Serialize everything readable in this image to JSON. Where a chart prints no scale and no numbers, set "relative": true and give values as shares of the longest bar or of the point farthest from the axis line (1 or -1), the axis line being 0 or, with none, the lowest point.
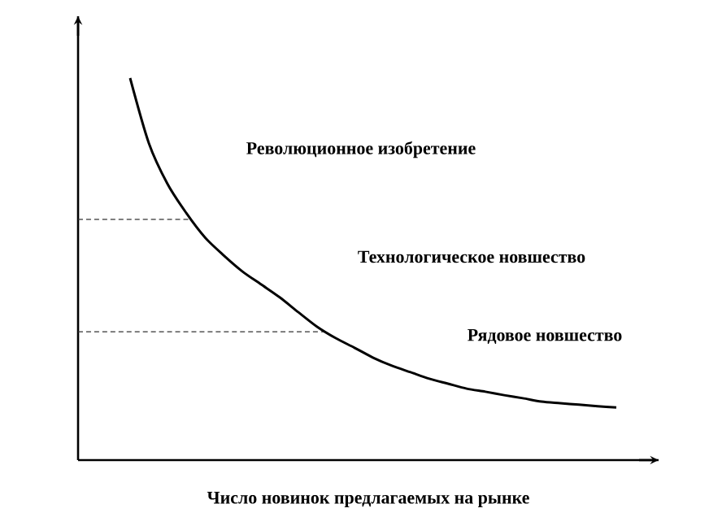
{
  "chart_data": {
    "type": "line",
    "relative": true,
    "xlabel": "Число новинок предлагаемых  на рынке",
    "categories": [
      null,
      null,
      null,
      null,
      null,
      null,
      null,
      null,
      null,
      null,
      null,
      null,
      null,
      null,
      null,
      null,
      null,
      null,
      null,
      null,
      null,
      null,
      null,
      null,
      null,
      null,
      null
    ],
    "values": [
      1.0,
      0.83,
      0.723,
      0.647,
      0.583,
      0.536,
      0.494,
      0.46,
      0.426,
      0.387,
      0.349,
      0.319,
      0.294,
      0.268,
      0.247,
      0.23,
      0.213,
      0.2,
      0.187,
      0.179,
      0.17,
      0.162,
      0.153,
      0.149,
      0.145,
      0.141,
      0.138
    ],
    "color": "#000000",
    "ref_lines": [
      {
        "axis": "y",
        "value": 0.63,
        "line_style": "dashed",
        "color": "#333333"
      },
      {
        "axis": "y",
        "value": 0.336,
        "line_style": "dashed",
        "color": "#333333"
      }
    ],
    "annotations": [
      "Революционное изобретение",
      "Технологическое  новшество",
      "Рядовое новшество"
    ]
  }
}
